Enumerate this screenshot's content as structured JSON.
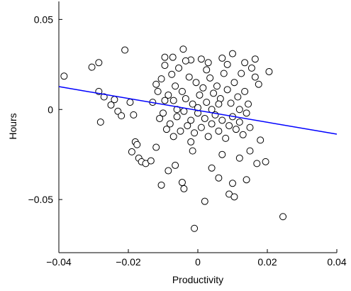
{
  "chart_data": {
    "type": "scatter",
    "title": "",
    "xlabel": "Productivity",
    "ylabel": "Hours",
    "xlim": [
      -0.04,
      0.04
    ],
    "ylim": [
      -0.0795,
      0.06
    ],
    "x_ticks": [
      -0.04,
      -0.02,
      0,
      0.02,
      0.04
    ],
    "x_tick_labels": [
      "−0.04",
      "−0.02",
      "0",
      "0.02",
      "0.04"
    ],
    "y_ticks": [
      -0.05,
      0,
      0.05
    ],
    "y_tick_labels": [
      "−0.05",
      "0",
      "0.05"
    ],
    "grid": false,
    "marker_color": "#000000",
    "fit_line_color": "#0000ff",
    "fit_line": {
      "x": [
        -0.04,
        0.04
      ],
      "y": [
        0.0127,
        -0.0137
      ]
    },
    "series": [
      {
        "points": [
          [
            -0.0385,
            0.0185
          ],
          [
            -0.0305,
            0.0235
          ],
          [
            -0.0285,
            0.026
          ],
          [
            -0.021,
            0.033
          ],
          [
            -0.0095,
            0.029
          ],
          [
            -0.0072,
            0.029
          ],
          [
            -0.0042,
            0.0335
          ],
          [
            -0.002,
            0.0275
          ],
          [
            0.001,
            0.028
          ],
          [
            0.003,
            0.026
          ],
          [
            0.007,
            0.0285
          ],
          [
            0.01,
            0.031
          ],
          [
            0.0165,
            0.028
          ],
          [
            0.0205,
            0.021
          ],
          [
            -0.0285,
            0.01
          ],
          [
            -0.027,
            0.007
          ],
          [
            -0.025,
            0.0025
          ],
          [
            -0.024,
            0.0055
          ],
          [
            -0.023,
            -0.001
          ],
          [
            -0.022,
            -0.0035
          ],
          [
            -0.028,
            -0.007
          ],
          [
            -0.0195,
            0.004
          ],
          [
            -0.0185,
            -0.003
          ],
          [
            -0.018,
            -0.018
          ],
          [
            -0.019,
            -0.0235
          ],
          [
            -0.0175,
            -0.0195
          ],
          [
            -0.017,
            -0.027
          ],
          [
            -0.0162,
            -0.029
          ],
          [
            -0.015,
            -0.03
          ],
          [
            -0.0135,
            -0.0285
          ],
          [
            -0.012,
            -0.021
          ],
          [
            -0.0105,
            -0.042
          ],
          [
            -0.0085,
            -0.034
          ],
          [
            -0.0065,
            -0.031
          ],
          [
            -0.0045,
            -0.0405
          ],
          [
            -0.004,
            -0.044
          ],
          [
            -0.002,
            -0.018
          ],
          [
            -0.0015,
            -0.023
          ],
          [
            -0.001,
            -0.066
          ],
          [
            0.002,
            -0.051
          ],
          [
            0.004,
            -0.0325
          ],
          [
            0.006,
            -0.038
          ],
          [
            0.007,
            -0.025
          ],
          [
            0.009,
            -0.047
          ],
          [
            0.01,
            -0.041
          ],
          [
            0.0105,
            -0.0485
          ],
          [
            0.012,
            -0.027
          ],
          [
            0.014,
            -0.039
          ],
          [
            0.015,
            -0.023
          ],
          [
            0.017,
            -0.03
          ],
          [
            0.018,
            -0.017
          ],
          [
            0.0195,
            -0.029
          ],
          [
            0.0245,
            -0.0595
          ],
          [
            -0.012,
            0.014
          ],
          [
            -0.0115,
            0.01
          ],
          [
            -0.0105,
            0.017
          ],
          [
            -0.0095,
            0.005
          ],
          [
            -0.0085,
            0.008
          ],
          [
            -0.0075,
            0.0195
          ],
          [
            -0.0065,
            0.013
          ],
          [
            -0.0055,
            0.023
          ],
          [
            -0.0045,
            0.01
          ],
          [
            -0.0035,
            0.006
          ],
          [
            -0.0025,
            0.018
          ],
          [
            -0.0015,
            0.003
          ],
          [
            -0.0005,
            0.015
          ],
          [
            0.0005,
            0.008
          ],
          [
            0.0015,
            0.012
          ],
          [
            0.0025,
            0.004
          ],
          [
            0.0035,
            0.0175
          ],
          [
            0.0045,
            0.009
          ],
          [
            0.0055,
            0.013
          ],
          [
            0.0065,
            0.006
          ],
          [
            0.0075,
            0.02
          ],
          [
            0.0085,
            0.011
          ],
          [
            0.0095,
            0.0035
          ],
          [
            0.0105,
            0.015
          ],
          [
            0.0115,
            0.007
          ],
          [
            0.0125,
            0.02
          ],
          [
            0.0135,
            0.01
          ],
          [
            0.0145,
            0.003
          ],
          [
            0.0155,
            0.023
          ],
          [
            0.0165,
            0.018
          ],
          [
            0.0175,
            0.014
          ],
          [
            -0.011,
            -0.005
          ],
          [
            -0.01,
            -0.002
          ],
          [
            -0.009,
            -0.011
          ],
          [
            -0.008,
            -0.008
          ],
          [
            -0.007,
            -0.015
          ],
          [
            -0.006,
            -0.004
          ],
          [
            -0.005,
            -0.012
          ],
          [
            -0.004,
            -0.001
          ],
          [
            -0.003,
            -0.009
          ],
          [
            -0.002,
            -0.006
          ],
          [
            -0.001,
            -0.013
          ],
          [
            0.0,
            -0.002
          ],
          [
            0.001,
            -0.01
          ],
          [
            0.002,
            -0.005
          ],
          [
            0.003,
            -0.015
          ],
          [
            0.004,
            -0.008
          ],
          [
            0.005,
            -0.003
          ],
          [
            0.006,
            -0.012
          ],
          [
            0.007,
            -0.006
          ],
          [
            0.008,
            -0.016
          ],
          [
            0.009,
            -0.009
          ],
          [
            0.01,
            -0.004
          ],
          [
            0.011,
            -0.011
          ],
          [
            0.012,
            -0.007
          ],
          [
            0.013,
            -0.014
          ],
          [
            0.014,
            -0.002
          ],
          [
            0.015,
            -0.01
          ],
          [
            -0.0095,
            0.0245
          ],
          [
            -0.0035,
            0.027
          ],
          [
            0.0025,
            0.022
          ],
          [
            0.0085,
            0.025
          ],
          [
            0.0135,
            0.026
          ],
          [
            -0.013,
            0.004
          ],
          [
            -0.006,
            0.0
          ],
          [
            0.0,
            0.001
          ],
          [
            0.004,
            0.0
          ],
          [
            0.012,
            0.0
          ],
          [
            -0.007,
            0.005
          ],
          [
            0.006,
            0.003
          ]
        ]
      }
    ]
  }
}
